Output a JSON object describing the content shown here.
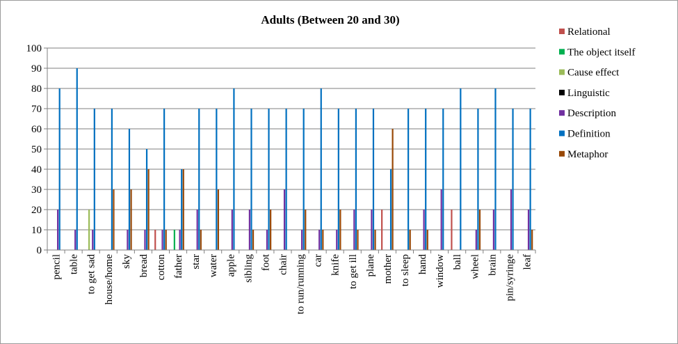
{
  "chart_data": {
    "type": "bar",
    "title": "Adults (Between 20 and 30)",
    "xlabel": "",
    "ylabel": "",
    "ylim": [
      0,
      100
    ],
    "yticks": [
      0,
      10,
      20,
      30,
      40,
      50,
      60,
      70,
      80,
      90,
      100
    ],
    "grid": true,
    "legend_position": "right",
    "categories": [
      "pencil",
      "table",
      "to get sad",
      "house/home",
      "sky",
      "bread",
      "cotton",
      "father",
      "star",
      "water",
      "apple",
      "sibling",
      "foot",
      "chair",
      "to run/running",
      "car",
      "knife",
      "to get ill",
      "plane",
      "mother",
      "to sleep",
      "hand",
      "window",
      "ball",
      "wheel",
      "brain",
      "pin/syringe",
      "leaf"
    ],
    "series": [
      {
        "name": "Relational",
        "color": "#c0504d",
        "values": [
          0,
          0,
          0,
          0,
          0,
          0,
          10,
          0,
          0,
          0,
          0,
          0,
          0,
          0,
          0,
          0,
          0,
          0,
          0,
          20,
          0,
          0,
          0,
          20,
          0,
          0,
          0,
          0
        ]
      },
      {
        "name": "The object itself",
        "color": "#00b050",
        "values": [
          0,
          0,
          0,
          0,
          0,
          0,
          0,
          10,
          0,
          0,
          0,
          0,
          0,
          0,
          0,
          0,
          0,
          0,
          0,
          0,
          0,
          0,
          0,
          0,
          0,
          0,
          0,
          0
        ]
      },
      {
        "name": "Cause effect",
        "color": "#9bbb59",
        "values": [
          0,
          0,
          20,
          0,
          0,
          0,
          0,
          0,
          0,
          0,
          0,
          0,
          0,
          0,
          0,
          0,
          0,
          0,
          0,
          0,
          0,
          0,
          0,
          0,
          0,
          0,
          0,
          0
        ]
      },
      {
        "name": "Linguistic",
        "color": "#000000",
        "values": [
          0,
          0,
          0,
          0,
          0,
          0,
          0,
          0,
          0,
          0,
          0,
          0,
          0,
          0,
          0,
          0,
          0,
          0,
          0,
          0,
          0,
          0,
          0,
          0,
          0,
          0,
          0,
          0
        ]
      },
      {
        "name": "Description",
        "color": "#7030a0",
        "values": [
          20,
          10,
          10,
          0,
          10,
          10,
          10,
          10,
          20,
          0,
          20,
          20,
          10,
          30,
          10,
          10,
          10,
          20,
          20,
          0,
          0,
          20,
          30,
          0,
          10,
          20,
          30,
          20
        ]
      },
      {
        "name": "Definition",
        "color": "#0070c0",
        "values": [
          80,
          90,
          70,
          70,
          60,
          50,
          70,
          40,
          70,
          70,
          80,
          70,
          70,
          70,
          70,
          80,
          70,
          70,
          70,
          40,
          70,
          70,
          70,
          80,
          70,
          80,
          70,
          70
        ]
      },
      {
        "name": "Metaphor",
        "color": "#984806",
        "values": [
          0,
          0,
          0,
          30,
          30,
          40,
          10,
          40,
          10,
          30,
          0,
          10,
          20,
          0,
          20,
          10,
          20,
          10,
          10,
          60,
          10,
          10,
          0,
          0,
          20,
          0,
          0,
          10
        ]
      }
    ]
  }
}
